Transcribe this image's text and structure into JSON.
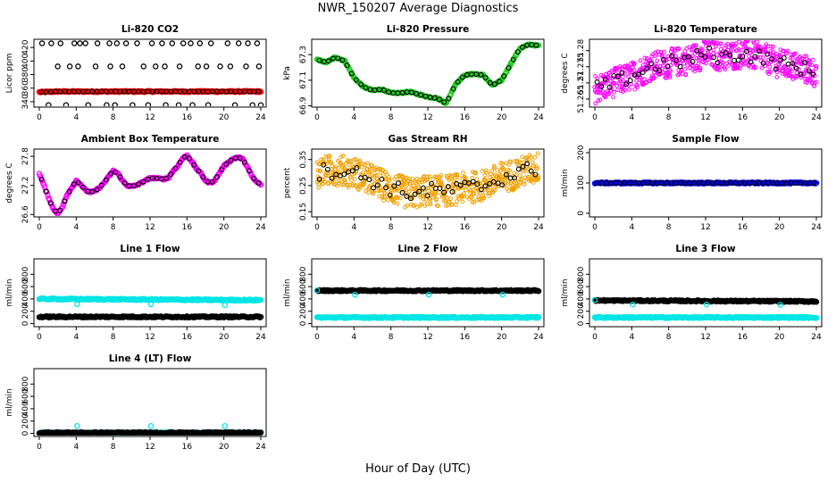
{
  "figure": {
    "title": "NWR_150207  Average Diagnostics",
    "xlabel": "Hour of Day (UTC)"
  },
  "colors": {
    "co2": "#ff0000",
    "pressure": "#22cc22",
    "licor_temp": "#ff00ff",
    "box_temp": "#ff00ff",
    "rh": "#f0a000",
    "sample_flow": "#0000ff",
    "line_flow": "#00e5e5",
    "avg_marker": "#000000"
  },
  "chart_data": [
    {
      "type": "scatter",
      "title": "Li-820 CO2",
      "ylabel": "Licor ppm",
      "xlim": [
        0,
        24
      ],
      "ylim": [
        332,
        432
      ],
      "xticks": [
        0,
        4,
        8,
        12,
        16,
        20,
        24
      ],
      "yticks": [
        340,
        360,
        380,
        400,
        420
      ],
      "series": [
        {
          "color": "#ff0000",
          "style": "dense",
          "x": [
            0,
            2,
            4,
            6,
            8,
            10,
            12,
            14,
            16,
            18,
            20,
            22,
            24
          ],
          "y": [
            354,
            355,
            355,
            355,
            355,
            355,
            355,
            355,
            355,
            355,
            355,
            355,
            355
          ]
        },
        {
          "color": "#000000",
          "style": "open",
          "x": [
            0.3,
            1.3,
            2.3,
            3.8,
            4.4,
            5.0,
            6.3,
            7.6,
            8.4,
            9.4,
            10.6,
            12.2,
            13.3,
            14.4,
            15.6,
            16.4,
            17.4,
            18.6,
            20.4,
            21.6,
            22.6,
            23.6,
            2.0,
            3.3,
            4.2,
            6.1,
            7.7,
            9.0,
            11.3,
            12.6,
            13.6,
            15.2,
            17.2,
            18.1,
            19.6,
            20.7,
            22.4,
            23.8,
            1.0,
            2.9,
            5.3,
            7.3,
            8.2,
            10.1,
            11.8,
            13.7,
            15.1,
            16.6,
            18.3,
            21.2,
            23.1,
            24.0
          ],
          "y": [
            426,
            426,
            426,
            426,
            426,
            426,
            426,
            426,
            426,
            426,
            426,
            426,
            426,
            426,
            426,
            426,
            426,
            426,
            426,
            426,
            426,
            426,
            392,
            392,
            392,
            392,
            392,
            392,
            392,
            392,
            392,
            392,
            392,
            392,
            392,
            392,
            392,
            392,
            335,
            335,
            335,
            335,
            335,
            335,
            335,
            335,
            335,
            335,
            335,
            335,
            335,
            335
          ]
        }
      ]
    },
    {
      "type": "scatter",
      "title": "Li-820 Pressure",
      "ylabel": "kPa",
      "xlim": [
        0,
        24
      ],
      "ylim": [
        66.89,
        67.42
      ],
      "xticks": [
        0,
        4,
        8,
        12,
        16,
        20,
        24
      ],
      "yticks": [
        66.9,
        67.1,
        67.3
      ],
      "series": [
        {
          "color": "#22cc22",
          "style": "dense",
          "x": [
            0,
            1,
            2,
            3,
            4,
            5,
            6,
            7,
            8,
            9,
            10,
            11,
            12,
            13,
            14,
            15,
            16,
            17,
            18,
            19,
            20,
            21,
            22,
            23,
            24
          ],
          "y": [
            67.26,
            67.24,
            67.28,
            67.25,
            67.12,
            67.05,
            67.02,
            67.03,
            67.0,
            67.0,
            67.01,
            66.99,
            66.97,
            66.96,
            66.92,
            67.07,
            67.14,
            67.15,
            67.14,
            67.06,
            67.1,
            67.23,
            67.35,
            67.38,
            67.37
          ]
        }
      ]
    },
    {
      "type": "scatter",
      "title": "Li-820 Temperature",
      "ylabel": "degrees C",
      "xlim": [
        0,
        24
      ],
      "ylim": [
        51.2625,
        51.2835
      ],
      "xticks": [
        0,
        4,
        8,
        12,
        16,
        20,
        24
      ],
      "yticks": [
        51.265,
        51.27,
        51.275,
        51.28
      ],
      "series": [
        {
          "color": "#ff00ff",
          "style": "noisy",
          "x": [
            0,
            2,
            4,
            6,
            8,
            10,
            12,
            14,
            16,
            18,
            20,
            22,
            24
          ],
          "y": [
            51.268,
            51.27,
            51.272,
            51.275,
            51.276,
            51.277,
            51.279,
            51.278,
            51.279,
            51.278,
            51.276,
            51.275,
            51.273
          ]
        }
      ]
    },
    {
      "type": "scatter",
      "title": "Ambient Box Temperature",
      "ylabel": "degrees C",
      "xlim": [
        0,
        24
      ],
      "ylim": [
        26.55,
        27.95
      ],
      "xticks": [
        0,
        4,
        8,
        12,
        16,
        20,
        24
      ],
      "yticks": [
        26.6,
        27.2,
        27.8
      ],
      "series": [
        {
          "color": "#ff00ff",
          "style": "dense",
          "x": [
            0,
            0.5,
            1,
            1.5,
            2,
            2.5,
            3,
            3.5,
            4,
            4.5,
            5,
            5.5,
            6,
            6.5,
            7,
            7.5,
            8,
            8.5,
            9,
            9.5,
            10,
            10.5,
            11,
            11.5,
            12,
            12.5,
            13,
            13.5,
            14,
            14.5,
            15,
            15.5,
            16,
            16.5,
            17,
            17.5,
            18,
            18.5,
            19,
            19.5,
            20,
            20.5,
            21,
            21.5,
            22,
            22.5,
            23,
            23.5,
            24
          ],
          "y": [
            27.45,
            27.2,
            26.95,
            26.72,
            26.62,
            26.75,
            27.0,
            27.15,
            27.3,
            27.22,
            27.1,
            27.06,
            27.08,
            27.15,
            27.25,
            27.38,
            27.5,
            27.45,
            27.3,
            27.2,
            27.18,
            27.2,
            27.25,
            27.3,
            27.35,
            27.35,
            27.34,
            27.33,
            27.36,
            27.5,
            27.6,
            27.75,
            27.82,
            27.7,
            27.55,
            27.45,
            27.3,
            27.25,
            27.3,
            27.45,
            27.6,
            27.68,
            27.75,
            27.78,
            27.75,
            27.6,
            27.4,
            27.28,
            27.22
          ]
        }
      ]
    },
    {
      "type": "scatter",
      "title": "Gas Stream RH",
      "ylabel": "percent",
      "xlim": [
        0,
        24
      ],
      "ylim": [
        0.13,
        0.39
      ],
      "xticks": [
        0,
        4,
        8,
        12,
        16,
        20,
        24
      ],
      "yticks": [
        0.15,
        0.25,
        0.35
      ],
      "series": [
        {
          "color": "#f0a000",
          "style": "noisy",
          "x": [
            0,
            2,
            4,
            6,
            8,
            10,
            12,
            14,
            16,
            18,
            20,
            22,
            24
          ],
          "y": [
            0.3,
            0.31,
            0.3,
            0.27,
            0.24,
            0.22,
            0.23,
            0.23,
            0.24,
            0.25,
            0.28,
            0.3,
            0.32
          ]
        }
      ]
    },
    {
      "type": "scatter",
      "title": "Sample Flow",
      "ylabel": "ml/min",
      "xlim": [
        0,
        24
      ],
      "ylim": [
        -12,
        212
      ],
      "xticks": [
        0,
        4,
        8,
        12,
        16,
        20,
        24
      ],
      "yticks": [
        0,
        100,
        200
      ],
      "series": [
        {
          "color": "#0000ff",
          "style": "dense",
          "x": [
            0,
            24
          ],
          "y": [
            100,
            100
          ]
        }
      ]
    },
    {
      "type": "scatter",
      "title": "Line 1 Flow",
      "ylabel": "ml/min",
      "xlim": [
        0,
        24
      ],
      "ylim": [
        -50,
        1050
      ],
      "xticks": [
        0,
        4,
        8,
        12,
        16,
        20,
        24
      ],
      "yticks": [
        0,
        200,
        400,
        600,
        800
      ],
      "series": [
        {
          "color": "#00e5e5",
          "style": "dense",
          "x": [
            0,
            24
          ],
          "y": [
            400,
            380
          ]
        },
        {
          "color": "#000000",
          "style": "dense",
          "x": [
            0,
            24
          ],
          "y": [
            110,
            110
          ]
        },
        {
          "color": "#00e5e5",
          "style": "open",
          "x": [
            4.1,
            12.1,
            20.1
          ],
          "y": [
            315,
            315,
            300
          ]
        }
      ]
    },
    {
      "type": "scatter",
      "title": "Line 2 Flow",
      "ylabel": "ml/min",
      "xlim": [
        0,
        24
      ],
      "ylim": [
        -50,
        1050
      ],
      "xticks": [
        0,
        4,
        8,
        12,
        16,
        20,
        24
      ],
      "yticks": [
        0,
        200,
        400,
        600,
        800
      ],
      "series": [
        {
          "color": "#00e5e5",
          "style": "dense",
          "x": [
            0,
            24
          ],
          "y": [
            100,
            100
          ]
        },
        {
          "color": "#000000",
          "style": "dense",
          "x": [
            0,
            24
          ],
          "y": [
            535,
            535
          ]
        },
        {
          "color": "#00e5e5",
          "style": "open",
          "x": [
            0.0,
            4.1,
            12.1,
            20.1
          ],
          "y": [
            540,
            470,
            470,
            470
          ]
        }
      ]
    },
    {
      "type": "scatter",
      "title": "Line 3 Flow",
      "ylabel": "ml/min",
      "xlim": [
        0,
        24
      ],
      "ylim": [
        -50,
        1050
      ],
      "xticks": [
        0,
        4,
        8,
        12,
        16,
        20,
        24
      ],
      "yticks": [
        0,
        200,
        400,
        600,
        800
      ],
      "series": [
        {
          "color": "#00e5e5",
          "style": "dense",
          "x": [
            0,
            24
          ],
          "y": [
            100,
            100
          ]
        },
        {
          "color": "#000000",
          "style": "dense",
          "x": [
            0,
            24
          ],
          "y": [
            375,
            360
          ]
        },
        {
          "color": "#00e5e5",
          "style": "open",
          "x": [
            0.0,
            4.1,
            12.1,
            20.1
          ],
          "y": [
            380,
            310,
            310,
            305
          ]
        }
      ]
    },
    {
      "type": "scatter",
      "title": "Line 4 (LT) Flow",
      "ylabel": "ml/min",
      "xlim": [
        0,
        24
      ],
      "ylim": [
        -50,
        1050
      ],
      "xticks": [
        0,
        4,
        8,
        12,
        16,
        20,
        24
      ],
      "yticks": [
        0,
        200,
        400,
        600,
        800
      ],
      "series": [
        {
          "color": "#00e5e5",
          "style": "dense",
          "x": [
            0,
            24
          ],
          "y": [
            10,
            10
          ]
        },
        {
          "color": "#000000",
          "style": "dense",
          "x": [
            0,
            24
          ],
          "y": [
            10,
            10
          ]
        },
        {
          "color": "#00e5e5",
          "style": "open",
          "x": [
            4.1,
            12.1,
            20.1
          ],
          "y": [
            120,
            120,
            120
          ]
        }
      ]
    }
  ]
}
